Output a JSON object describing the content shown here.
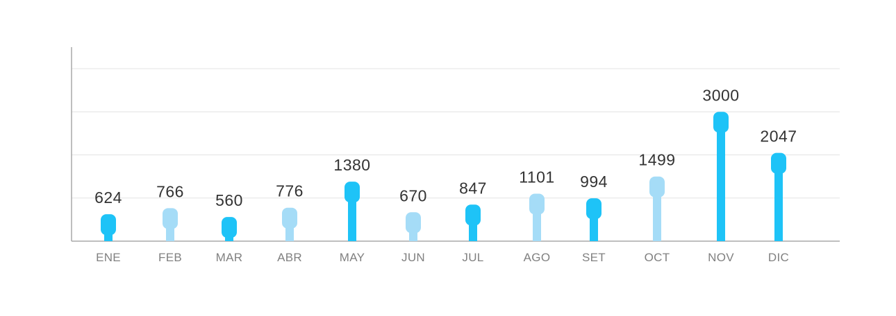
{
  "chart_data": {
    "type": "bar",
    "title": "",
    "xlabel": "",
    "ylabel": "",
    "categories": [
      "ENE",
      "FEB",
      "MAR",
      "ABR",
      "MAY",
      "JUN",
      "JUL",
      "AGO",
      "SET",
      "OCT",
      "NOV",
      "DIC"
    ],
    "values": [
      624,
      766,
      560,
      776,
      1380,
      670,
      847,
      1101,
      994,
      1499,
      3000,
      2047
    ],
    "bar_shades": [
      "dark",
      "light",
      "dark",
      "light",
      "dark",
      "light",
      "dark",
      "light",
      "dark",
      "light",
      "dark",
      "dark"
    ],
    "ylim": [
      0,
      4500
    ],
    "grid": true,
    "legend": "none",
    "colors": {
      "dark": "#1ec3f7",
      "light": "#a5dcf7",
      "axis": "#a8a8a8",
      "grid": "#e3e3e3",
      "value_text": "#333333",
      "tick_text": "#808080"
    }
  }
}
